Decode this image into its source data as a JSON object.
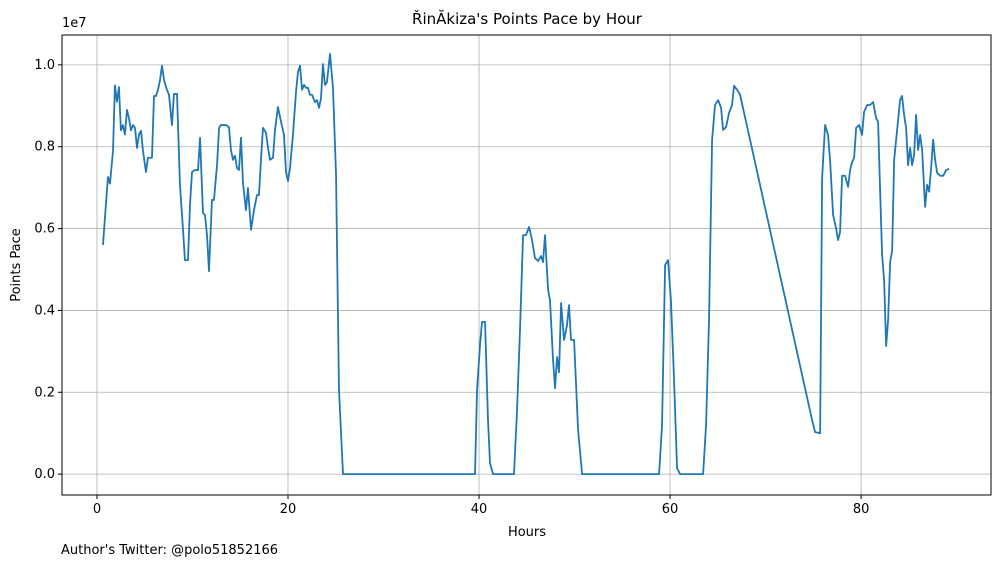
{
  "chart_data": {
    "type": "line",
    "title": "ŘinĂkiza's Points Pace by Hour",
    "x_label": "Hours",
    "y_label": "Points Pace",
    "y_scale_label": "1e7",
    "footer": "Author's Twitter: @polo51852166",
    "color": "#1f77b4",
    "grid": true,
    "xlim": [
      -3.66,
      93.6
    ],
    "ylim": [
      -0.051,
      1.073
    ],
    "xticks": [
      0,
      20,
      40,
      60,
      80
    ],
    "yticks": [
      {
        "value": 0,
        "label": "0.0"
      },
      0.2,
      0.4,
      0.6,
      0.8,
      {
        "value": 1,
        "label": "1.0"
      }
    ],
    "x": [
      0.63,
      0.94,
      1.15,
      1.36,
      1.68,
      1.88,
      2.09,
      2.3,
      2.51,
      2.72,
      2.93,
      3.14,
      3.35,
      3.56,
      3.77,
      3.98,
      4.19,
      4.4,
      4.61,
      4.82,
      5.13,
      5.34,
      5.55,
      5.76,
      5.97,
      6.18,
      6.39,
      6.6,
      6.81,
      7.02,
      7.33,
      7.54,
      7.85,
      8.06,
      8.38,
      8.69,
      9.01,
      9.21,
      9.53,
      9.74,
      9.95,
      10.26,
      10.58,
      10.79,
      11.1,
      11.31,
      11.52,
      11.73,
      12.04,
      12.25,
      12.57,
      12.78,
      12.98,
      13.3,
      13.51,
      13.82,
      14.03,
      14.24,
      14.45,
      14.66,
      14.87,
      15.08,
      15.29,
      15.6,
      15.81,
      16.13,
      16.44,
      16.75,
      16.96,
      17.17,
      17.38,
      17.7,
      17.91,
      18.12,
      18.43,
      18.64,
      18.95,
      19.27,
      19.58,
      19.79,
      20.0,
      20.21,
      20.52,
      20.84,
      21.05,
      21.26,
      21.47,
      21.68,
      21.88,
      22.09,
      22.3,
      22.51,
      22.83,
      23.04,
      23.25,
      23.46,
      23.66,
      23.87,
      24.08,
      24.4,
      24.71,
      25.03,
      25.34,
      25.76,
      39.58,
      39.79,
      40.1,
      40.31,
      40.63,
      40.94,
      41.15,
      41.47,
      43.66,
      43.98,
      44.29,
      44.61,
      44.92,
      45.24,
      45.55,
      45.86,
      46.18,
      46.49,
      46.7,
      46.91,
      47.23,
      47.43,
      47.75,
      47.96,
      48.17,
      48.38,
      48.59,
      48.9,
      49.21,
      49.42,
      49.63,
      49.95,
      50.37,
      50.79,
      58.85,
      59.16,
      59.48,
      59.79,
      60.1,
      60.42,
      60.73,
      61.05,
      63.46,
      63.77,
      64.08,
      64.4,
      64.71,
      65.03,
      65.34,
      65.55,
      65.86,
      66.18,
      66.49,
      66.7,
      67.02,
      67.33,
      74.87,
      75.18,
      75.71,
      75.92,
      76.23,
      76.54,
      76.75,
      77.07,
      77.38,
      77.59,
      77.8,
      78.01,
      78.32,
      78.64,
      78.85,
      79.06,
      79.27,
      79.48,
      79.79,
      80.1,
      80.31,
      80.63,
      80.94,
      81.26,
      81.57,
      81.78,
      81.99,
      82.2,
      82.41,
      82.62,
      82.83,
      83.04,
      83.25,
      83.46,
      83.77,
      84.08,
      84.29,
      84.5,
      84.71,
      84.92,
      85.13,
      85.34,
      85.55,
      85.76,
      85.97,
      86.18,
      86.39,
      86.7,
      86.91,
      87.12,
      87.33,
      87.54,
      87.75,
      87.96,
      88.27,
      88.59,
      88.9,
      89.21
    ],
    "values": [
      0.56,
      0.66,
      0.726,
      0.71,
      0.79,
      0.95,
      0.91,
      0.946,
      0.84,
      0.853,
      0.83,
      0.89,
      0.87,
      0.84,
      0.853,
      0.846,
      0.797,
      0.83,
      0.839,
      0.79,
      0.738,
      0.773,
      0.773,
      0.773,
      0.924,
      0.924,
      0.939,
      0.963,
      0.998,
      0.963,
      0.939,
      0.927,
      0.853,
      0.929,
      0.929,
      0.707,
      0.597,
      0.523,
      0.523,
      0.658,
      0.738,
      0.743,
      0.743,
      0.822,
      0.638,
      0.633,
      0.584,
      0.496,
      0.67,
      0.67,
      0.755,
      0.846,
      0.853,
      0.853,
      0.853,
      0.848,
      0.792,
      0.768,
      0.778,
      0.748,
      0.743,
      0.822,
      0.711,
      0.645,
      0.699,
      0.597,
      0.645,
      0.682,
      0.682,
      0.768,
      0.846,
      0.834,
      0.797,
      0.768,
      0.773,
      0.841,
      0.897,
      0.861,
      0.829,
      0.738,
      0.716,
      0.748,
      0.829,
      0.934,
      0.983,
      0.998,
      0.939,
      0.951,
      0.944,
      0.944,
      0.927,
      0.927,
      0.909,
      0.914,
      0.895,
      0.919,
      1.002,
      0.951,
      0.958,
      1.027,
      0.944,
      0.731,
      0.205,
      0,
      0,
      0.205,
      0.315,
      0.372,
      0.372,
      0.132,
      0.027,
      0,
      0,
      0.156,
      0.352,
      0.584,
      0.584,
      0.604,
      0.572,
      0.528,
      0.521,
      0.533,
      0.518,
      0.584,
      0.45,
      0.425,
      0.279,
      0.21,
      0.286,
      0.249,
      0.418,
      0.328,
      0.364,
      0.413,
      0.328,
      0.328,
      0.108,
      0,
      0,
      0.12,
      0.511,
      0.523,
      0.421,
      0.23,
      0.015,
      0,
      0,
      0.12,
      0.377,
      0.817,
      0.902,
      0.914,
      0.895,
      0.841,
      0.848,
      0.883,
      0.902,
      0.949,
      0.939,
      0.927,
      0.132,
      0.103,
      0.1,
      0.724,
      0.853,
      0.829,
      0.768,
      0.633,
      0.601,
      0.572,
      0.592,
      0.729,
      0.729,
      0.702,
      0.743,
      0.763,
      0.773,
      0.846,
      0.853,
      0.829,
      0.885,
      0.902,
      0.902,
      0.909,
      0.87,
      0.861,
      0.694,
      0.535,
      0.474,
      0.313,
      0.377,
      0.518,
      0.545,
      0.768,
      0.841,
      0.914,
      0.924,
      0.878,
      0.846,
      0.755,
      0.797,
      0.755,
      0.78,
      0.878,
      0.792,
      0.829,
      0.792,
      0.653,
      0.707,
      0.69,
      0.748,
      0.817,
      0.768,
      0.736,
      0.729,
      0.729,
      0.743,
      0.746
    ]
  }
}
